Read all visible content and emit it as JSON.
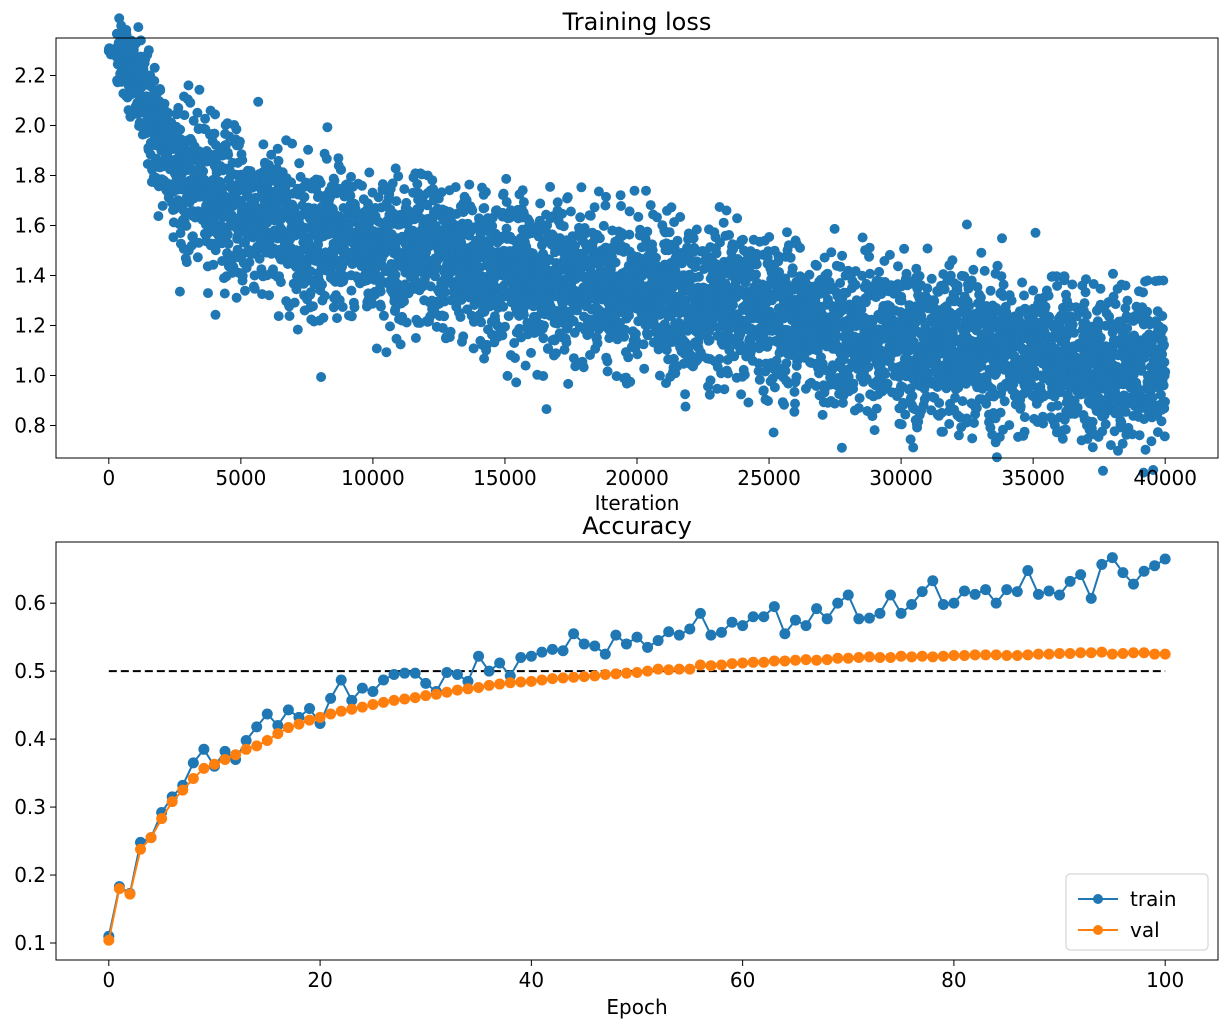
{
  "chart_data": [
    {
      "type": "scatter",
      "title": "Training loss",
      "xlabel": "Iteration",
      "ylabel": "",
      "xlim": [
        -2000,
        42000
      ],
      "ylim": [
        0.67,
        2.35
      ],
      "xticks": [
        0,
        5000,
        10000,
        15000,
        20000,
        25000,
        30000,
        35000,
        40000
      ],
      "xtick_labels": [
        "0",
        "5000",
        "10000",
        "15000",
        "20000",
        "25000",
        "30000",
        "35000",
        "40000"
      ],
      "yticks": [
        0.8,
        1.0,
        1.2,
        1.4,
        1.6,
        1.8,
        2.0,
        2.2
      ],
      "ytick_labels": [
        "0.8",
        "1.0",
        "1.2",
        "1.4",
        "1.6",
        "1.8",
        "2.0",
        "2.2"
      ],
      "series": [
        {
          "name": "loss",
          "color": "#1f77b4",
          "trend": [
            {
              "x": 0,
              "y": 2.3
            },
            {
              "x": 500,
              "y": 2.29
            },
            {
              "x": 1000,
              "y": 2.17
            },
            {
              "x": 2000,
              "y": 1.92
            },
            {
              "x": 3000,
              "y": 1.78
            },
            {
              "x": 5000,
              "y": 1.66
            },
            {
              "x": 7500,
              "y": 1.57
            },
            {
              "x": 10000,
              "y": 1.51
            },
            {
              "x": 15000,
              "y": 1.42
            },
            {
              "x": 20000,
              "y": 1.33
            },
            {
              "x": 25000,
              "y": 1.24
            },
            {
              "x": 30000,
              "y": 1.14
            },
            {
              "x": 35000,
              "y": 1.07
            },
            {
              "x": 40000,
              "y": 1.03
            }
          ],
          "spread": 0.14,
          "n_points": 40000
        }
      ]
    },
    {
      "type": "line",
      "title": "Accuracy",
      "xlabel": "Epoch",
      "ylabel": "",
      "xlim": [
        -5,
        105
      ],
      "ylim": [
        0.075,
        0.69
      ],
      "xticks": [
        0,
        20,
        40,
        60,
        80,
        100
      ],
      "xtick_labels": [
        "0",
        "20",
        "40",
        "60",
        "80",
        "100"
      ],
      "yticks": [
        0.1,
        0.2,
        0.3,
        0.4,
        0.5,
        0.6
      ],
      "ytick_labels": [
        "0.1",
        "0.2",
        "0.3",
        "0.4",
        "0.5",
        "0.6"
      ],
      "reference_line": {
        "y": 0.5,
        "x": [
          0,
          100
        ],
        "style": "dashed",
        "color": "#000000"
      },
      "legend_position": "lower right",
      "series": [
        {
          "name": "train",
          "color": "#1f77b4",
          "values": [
            0.11,
            0.183,
            0.173,
            0.248,
            0.255,
            0.292,
            0.315,
            0.332,
            0.365,
            0.385,
            0.36,
            0.382,
            0.37,
            0.398,
            0.418,
            0.437,
            0.42,
            0.443,
            0.432,
            0.445,
            0.423,
            0.46,
            0.487,
            0.457,
            0.475,
            0.47,
            0.487,
            0.495,
            0.497,
            0.497,
            0.482,
            0.47,
            0.498,
            0.495,
            0.485,
            0.522,
            0.5,
            0.512,
            0.493,
            0.52,
            0.522,
            0.528,
            0.532,
            0.53,
            0.555,
            0.54,
            0.537,
            0.525,
            0.553,
            0.54,
            0.55,
            0.535,
            0.545,
            0.558,
            0.553,
            0.562,
            0.585,
            0.553,
            0.557,
            0.572,
            0.567,
            0.58,
            0.58,
            0.595,
            0.555,
            0.575,
            0.567,
            0.592,
            0.577,
            0.6,
            0.612,
            0.577,
            0.578,
            0.585,
            0.612,
            0.585,
            0.598,
            0.617,
            0.633,
            0.598,
            0.6,
            0.618,
            0.613,
            0.62,
            0.6,
            0.62,
            0.617,
            0.648,
            0.613,
            0.618,
            0.612,
            0.632,
            0.642,
            0.607,
            0.657,
            0.667,
            0.645,
            0.628,
            0.647,
            0.655,
            0.665
          ]
        },
        {
          "name": "val",
          "color": "#ff7f0e",
          "values": [
            0.104,
            0.18,
            0.172,
            0.238,
            0.255,
            0.283,
            0.308,
            0.325,
            0.342,
            0.357,
            0.363,
            0.37,
            0.377,
            0.385,
            0.39,
            0.398,
            0.408,
            0.417,
            0.422,
            0.428,
            0.432,
            0.437,
            0.441,
            0.444,
            0.447,
            0.451,
            0.454,
            0.457,
            0.459,
            0.461,
            0.464,
            0.466,
            0.469,
            0.472,
            0.474,
            0.476,
            0.479,
            0.481,
            0.483,
            0.484,
            0.485,
            0.487,
            0.489,
            0.49,
            0.491,
            0.492,
            0.493,
            0.495,
            0.496,
            0.497,
            0.498,
            0.5,
            0.503,
            0.502,
            0.503,
            0.503,
            0.509,
            0.508,
            0.509,
            0.511,
            0.512,
            0.513,
            0.513,
            0.515,
            0.515,
            0.516,
            0.517,
            0.516,
            0.517,
            0.519,
            0.519,
            0.52,
            0.521,
            0.52,
            0.52,
            0.522,
            0.521,
            0.522,
            0.521,
            0.522,
            0.523,
            0.523,
            0.524,
            0.524,
            0.524,
            0.523,
            0.523,
            0.524,
            0.525,
            0.525,
            0.526,
            0.526,
            0.527,
            0.527,
            0.528,
            0.525,
            0.526,
            0.527,
            0.527,
            0.525,
            0.525
          ]
        }
      ]
    }
  ]
}
